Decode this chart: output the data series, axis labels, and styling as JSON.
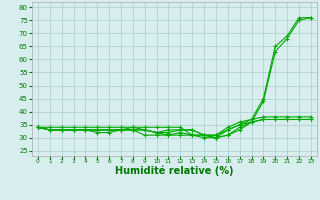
{
  "background_color": "#d8eeee",
  "grid_color": "#aacccc",
  "line_color": "#00aa00",
  "xlabel": "Humidité relative (%)",
  "xlabel_color": "#007700",
  "yticks": [
    25,
    30,
    35,
    40,
    45,
    50,
    55,
    60,
    65,
    70,
    75,
    80
  ],
  "xticks": [
    0,
    1,
    2,
    3,
    4,
    5,
    6,
    7,
    8,
    9,
    10,
    11,
    12,
    13,
    14,
    15,
    16,
    17,
    18,
    19,
    20,
    21,
    22,
    23
  ],
  "xlim": [
    -0.5,
    23.5
  ],
  "ylim": [
    23,
    82
  ],
  "series": [
    [
      34,
      34,
      34,
      34,
      34,
      34,
      34,
      34,
      34,
      34,
      34,
      34,
      34,
      31,
      31,
      31,
      34,
      36,
      37,
      45,
      65,
      69,
      76,
      76
    ],
    [
      34,
      33,
      33,
      33,
      33,
      33,
      33,
      33,
      34,
      33,
      32,
      31,
      31,
      31,
      30,
      30,
      31,
      34,
      36,
      44,
      63,
      68,
      75,
      76
    ],
    [
      34,
      33,
      33,
      33,
      33,
      33,
      33,
      33,
      33,
      33,
      32,
      32,
      33,
      33,
      31,
      31,
      33,
      35,
      37,
      38,
      38,
      38,
      38,
      38
    ],
    [
      34,
      33,
      33,
      33,
      33,
      32,
      32,
      33,
      33,
      31,
      31,
      31,
      32,
      31,
      31,
      30,
      31,
      33,
      36,
      37,
      37,
      37,
      37,
      37
    ],
    [
      34,
      33,
      33,
      33,
      33,
      33,
      33,
      33,
      33,
      33,
      32,
      33,
      33,
      33,
      31,
      30,
      33,
      35,
      36,
      37,
      37,
      37,
      37,
      37
    ]
  ]
}
